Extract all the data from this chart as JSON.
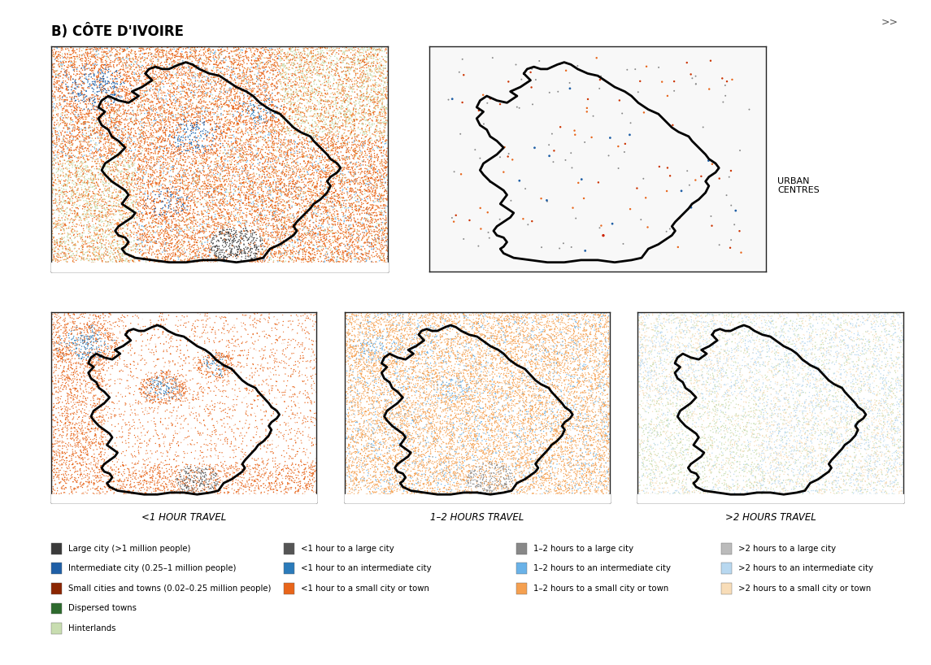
{
  "title": "B) CÔTE D'IVOIRE",
  "title_fontsize": 12,
  "title_fontweight": "bold",
  "background_color": "#ffffff",
  "figure_width": 11.45,
  "figure_height": 8.18,
  "legend_items_col0": [
    {
      "color": "#3a3a3a",
      "label": "Large city (>1 million people)"
    },
    {
      "color": "#1f5fa6",
      "label": "Intermediate city (0.25–1 million people)"
    },
    {
      "color": "#8b2500",
      "label": "Small cities and towns (0.02–0.25 million people)"
    },
    {
      "color": "#2d6a2d",
      "label": "Dispersed towns"
    },
    {
      "color": "#c8ddb0",
      "label": "Hinterlands"
    }
  ],
  "legend_items_col1": [
    {
      "color": "#555555",
      "label": "<1 hour to a large city"
    },
    {
      "color": "#2b7bba",
      "label": "<1 hour to an intermediate city"
    },
    {
      "color": "#e8651a",
      "label": "<1 hour to a small city or town"
    }
  ],
  "legend_items_col2": [
    {
      "color": "#888888",
      "label": "1–2 hours to a large city"
    },
    {
      "color": "#6ab2e8",
      "label": "1–2 hours to an intermediate city"
    },
    {
      "color": "#f5a050",
      "label": "1–2 hours to a small city or town"
    }
  ],
  "legend_items_col3": [
    {
      "color": "#bbbbbb",
      "label": ">2 hours to a large city"
    },
    {
      "color": "#b8d8f0",
      "label": ">2 hours to an intermediate city"
    },
    {
      "color": "#f8ddb8",
      "label": ">2 hours to a small city or town"
    }
  ],
  "map_labels": [
    "",
    "URBAN\nCENTRES",
    "<1 HOUR TRAVEL",
    "1–2 HOURS TRAVEL",
    ">2 HOURS TRAVEL"
  ]
}
